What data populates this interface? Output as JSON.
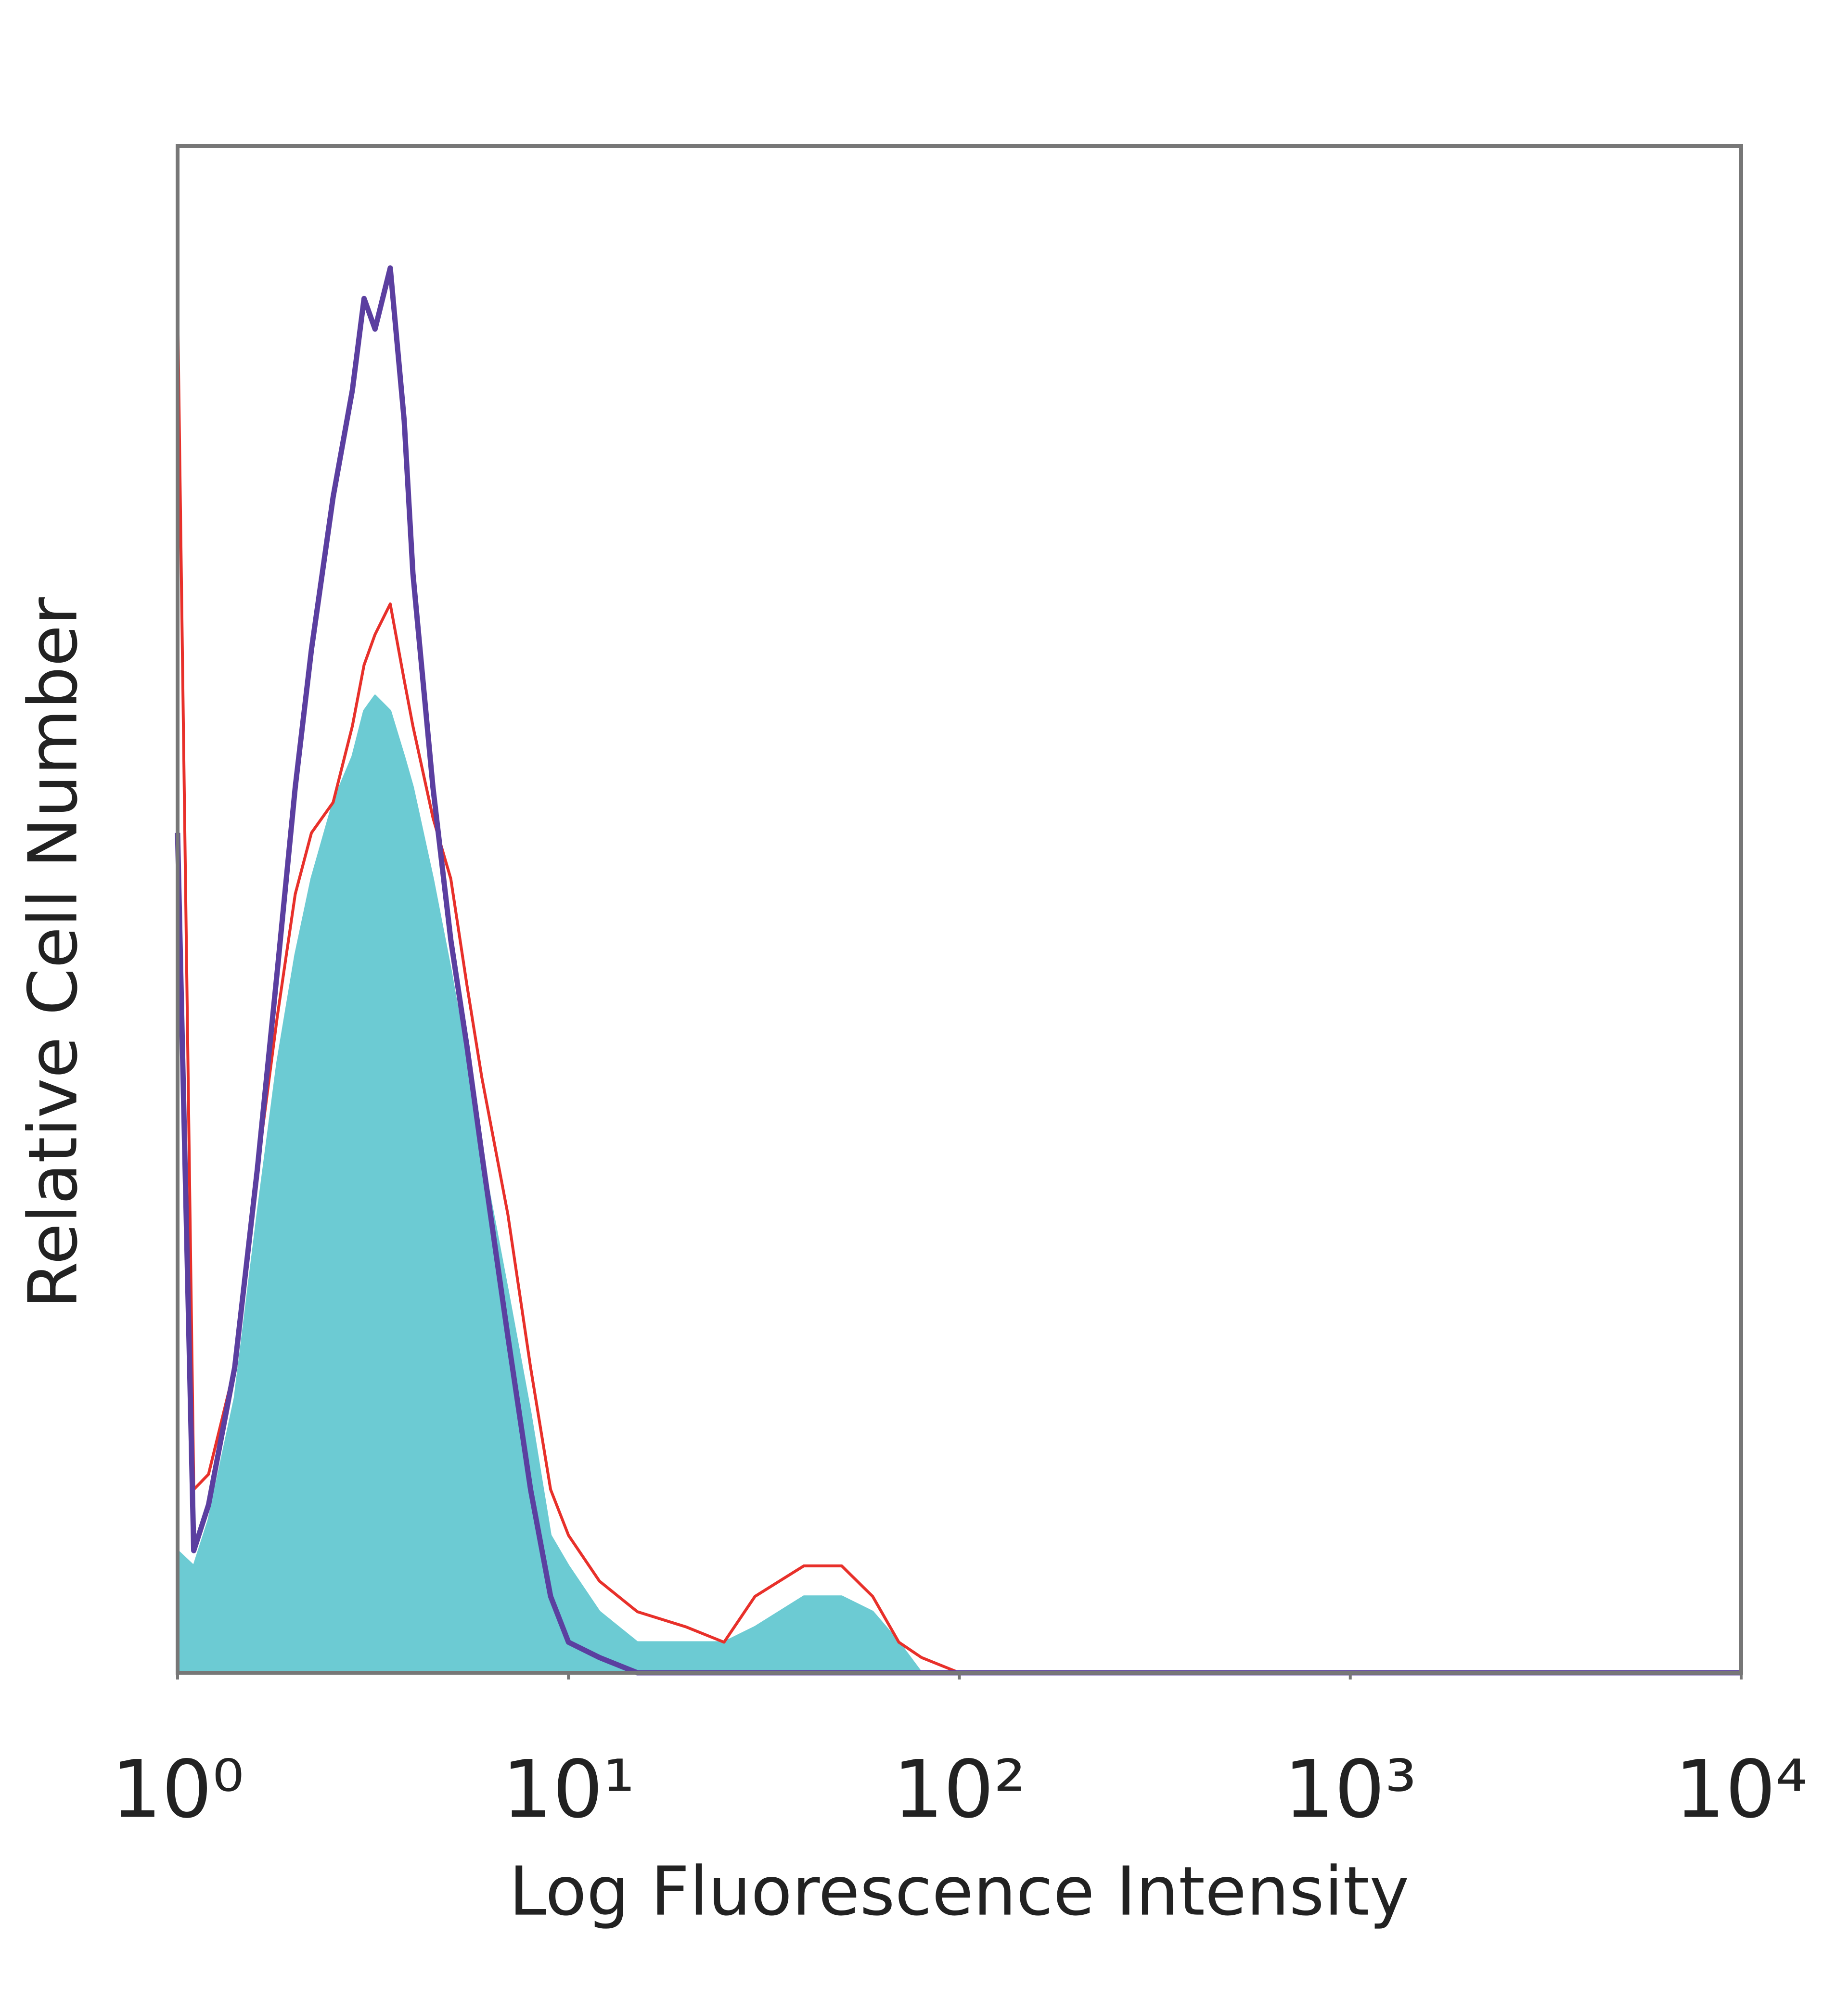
{
  "chart_data": {
    "type": "histogram-overlay",
    "xlabel": "Log Fluorescence Intensity",
    "ylabel": "Relative Cell Number",
    "log_x": true,
    "xlim": [
      1,
      10000
    ],
    "xticks": [
      {
        "value": 1,
        "label": "10⁰"
      },
      {
        "value": 10,
        "label": "10¹"
      },
      {
        "value": 100,
        "label": "10²"
      },
      {
        "value": 1000,
        "label": "10³"
      },
      {
        "value": 10000,
        "label": "10⁴"
      }
    ],
    "ylim": [
      0,
      100
    ],
    "x": [
      1,
      1.1,
      1.2,
      1.4,
      1.6,
      1.8,
      2,
      2.2,
      2.5,
      2.8,
      3,
      3.2,
      3.5,
      3.8,
      4,
      4.5,
      5,
      5.5,
      6,
      7,
      8,
      9,
      10,
      12,
      15,
      20,
      25,
      30,
      40,
      50,
      60,
      70,
      80,
      100,
      10000
    ],
    "series": [
      {
        "color": "#6ccbd3",
        "filled": true,
        "values": [
          8,
          7,
          10,
          18,
          30,
          40,
          47,
          52,
          57,
          60,
          63,
          64,
          63,
          60,
          58,
          52,
          46,
          40,
          34,
          25,
          17,
          9,
          7,
          4,
          2,
          2,
          2,
          3,
          5,
          5,
          4,
          2,
          0,
          0,
          0
        ]
      },
      {
        "color": "#e8302a",
        "filled": false,
        "values": [
          90,
          12,
          13,
          20,
          33,
          43,
          51,
          55,
          57,
          62,
          66,
          68,
          70,
          65,
          62,
          56,
          52,
          45,
          39,
          30,
          20,
          12,
          9,
          6,
          4,
          3,
          2,
          5,
          7,
          7,
          5,
          2,
          1,
          0,
          0
        ]
      },
      {
        "color": "#5b3fa0",
        "filled": false,
        "values": [
          55,
          8,
          11,
          20,
          33,
          46,
          58,
          67,
          77,
          84,
          90,
          88,
          92,
          82,
          72,
          58,
          48,
          41,
          34,
          22,
          12,
          5,
          2,
          1,
          0,
          0,
          0,
          0,
          0,
          0,
          0,
          0,
          0,
          0,
          0
        ]
      }
    ]
  }
}
